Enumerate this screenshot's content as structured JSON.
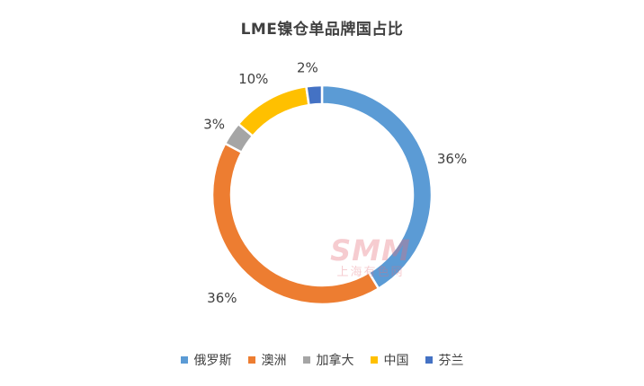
{
  "chart_data": {
    "type": "pie",
    "variant": "donut",
    "title": "LME镍仓单品牌国占比",
    "start_angle_deg": 90,
    "direction": "clockwise",
    "legend_position": "bottom",
    "slices": [
      {
        "name": "俄罗斯",
        "value": 36,
        "label": "36%",
        "color": "#5B9BD5"
      },
      {
        "name": "澳洲",
        "value": 36,
        "label": "36%",
        "color": "#ED7D31"
      },
      {
        "name": "加拿大",
        "value": 3,
        "label": "3%",
        "color": "#A5A5A5"
      },
      {
        "name": "中国",
        "value": 10,
        "label": "10%",
        "color": "#FFC000"
      },
      {
        "name": "芬兰",
        "value": 2,
        "label": "2%",
        "color": "#4472C4"
      }
    ]
  },
  "watermark": {
    "logo": "SMM",
    "subtitle": "上海有色网"
  }
}
